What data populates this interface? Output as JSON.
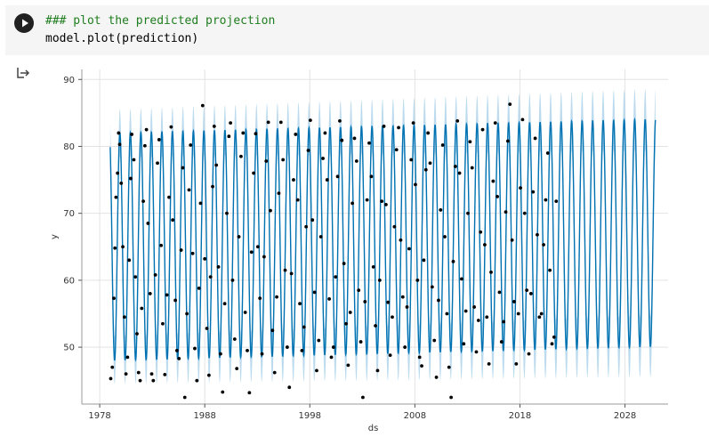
{
  "cell": {
    "code_lines": [
      "### plot the predicted projection",
      "model.plot(prediction)"
    ],
    "run_icon": "play-icon",
    "output_icon": "output-redirect-icon"
  },
  "chart_data": {
    "type": "line",
    "xlabel": "ds",
    "ylabel": "y",
    "xlim": [
      1976.3,
      2032.1
    ],
    "ylim": [
      41.5,
      91.5
    ],
    "x_ticks": [
      1978,
      1988,
      1998,
      2008,
      2018,
      2028
    ],
    "x_tick_labels": [
      "1978",
      "1988",
      "1998",
      "2008",
      "2018",
      "2028"
    ],
    "y_ticks": [
      50,
      60,
      70,
      80,
      90
    ],
    "y_tick_labels": [
      "50",
      "60",
      "70",
      "80",
      "90"
    ],
    "grid": true,
    "forecast": {
      "start": 1979.0,
      "end": 2030.9,
      "period_years": 1.0,
      "trough_approx": 48,
      "peak_approx": 82,
      "uncertainty_band_approx": 3.5,
      "line_color": "#0072b2",
      "band_color": "#a6cfe8"
    },
    "observed": {
      "start": 1979.0,
      "end": 2021.5,
      "marker_color": "#000000",
      "points": [
        [
          1979.05,
          45.3
        ],
        [
          1979.2,
          47.0
        ],
        [
          1979.35,
          57.3
        ],
        [
          1979.45,
          64.8
        ],
        [
          1979.55,
          72.4
        ],
        [
          1979.7,
          76.0
        ],
        [
          1979.8,
          82.0
        ],
        [
          1979.9,
          80.3
        ],
        [
          1980.05,
          74.5
        ],
        [
          1980.2,
          65.0
        ],
        [
          1980.35,
          54.5
        ],
        [
          1980.5,
          46.0
        ],
        [
          1980.65,
          48.5
        ],
        [
          1980.8,
          63.0
        ],
        [
          1980.95,
          75.2
        ],
        [
          1981.05,
          81.8
        ],
        [
          1981.25,
          78.0
        ],
        [
          1981.4,
          60.5
        ],
        [
          1981.55,
          52.0
        ],
        [
          1981.7,
          46.2
        ],
        [
          1981.85,
          45.0
        ],
        [
          1982.0,
          55.8
        ],
        [
          1982.15,
          71.8
        ],
        [
          1982.3,
          80.1
        ],
        [
          1982.45,
          82.5
        ],
        [
          1982.6,
          68.5
        ],
        [
          1982.8,
          58.0
        ],
        [
          1982.95,
          46.0
        ],
        [
          1983.1,
          45.0
        ],
        [
          1983.3,
          60.8
        ],
        [
          1983.5,
          77.5
        ],
        [
          1983.65,
          81.0
        ],
        [
          1983.85,
          65.2
        ],
        [
          1984.0,
          53.5
        ],
        [
          1984.2,
          45.9
        ],
        [
          1984.4,
          57.8
        ],
        [
          1984.6,
          72.4
        ],
        [
          1984.8,
          82.9
        ],
        [
          1984.95,
          69.0
        ],
        [
          1985.2,
          57.0
        ],
        [
          1985.35,
          49.5
        ],
        [
          1985.55,
          48.3
        ],
        [
          1985.75,
          64.5
        ],
        [
          1985.9,
          76.8
        ],
        [
          1986.1,
          42.5
        ],
        [
          1986.3,
          55.0
        ],
        [
          1986.5,
          73.5
        ],
        [
          1986.65,
          80.2
        ],
        [
          1986.85,
          64.0
        ],
        [
          1987.05,
          49.8
        ],
        [
          1987.25,
          45.0
        ],
        [
          1987.45,
          58.8
        ],
        [
          1987.6,
          71.5
        ],
        [
          1987.8,
          86.1
        ],
        [
          1988.0,
          63.2
        ],
        [
          1988.2,
          52.8
        ],
        [
          1988.4,
          45.8
        ],
        [
          1988.55,
          60.5
        ],
        [
          1988.75,
          74.0
        ],
        [
          1988.9,
          83.0
        ],
        [
          1989.1,
          77.2
        ],
        [
          1989.3,
          62.0
        ],
        [
          1989.5,
          49.0
        ],
        [
          1989.7,
          43.3
        ],
        [
          1989.9,
          56.5
        ],
        [
          1990.1,
          70.0
        ],
        [
          1990.3,
          81.5
        ],
        [
          1990.45,
          83.5
        ],
        [
          1990.65,
          60.0
        ],
        [
          1990.85,
          51.2
        ],
        [
          1991.05,
          46.8
        ],
        [
          1991.25,
          66.5
        ],
        [
          1991.45,
          78.5
        ],
        [
          1991.65,
          82.0
        ],
        [
          1991.85,
          55.2
        ],
        [
          1992.05,
          49.5
        ],
        [
          1992.25,
          43.2
        ],
        [
          1992.45,
          64.2
        ],
        [
          1992.65,
          76.0
        ],
        [
          1992.85,
          81.9
        ],
        [
          1993.05,
          65.0
        ],
        [
          1993.25,
          57.3
        ],
        [
          1993.45,
          49.0
        ],
        [
          1993.65,
          63.5
        ],
        [
          1993.85,
          77.8
        ],
        [
          1994.05,
          83.6
        ],
        [
          1994.25,
          70.4
        ],
        [
          1994.45,
          52.5
        ],
        [
          1994.65,
          46.2
        ],
        [
          1994.85,
          57.5
        ],
        [
          1995.05,
          73.0
        ],
        [
          1995.25,
          83.6
        ],
        [
          1995.45,
          78.0
        ],
        [
          1995.65,
          61.5
        ],
        [
          1995.85,
          50.0
        ],
        [
          1996.05,
          44.0
        ],
        [
          1996.25,
          61.0
        ],
        [
          1996.45,
          75.0
        ],
        [
          1996.65,
          81.8
        ],
        [
          1996.85,
          72.0
        ],
        [
          1997.05,
          56.5
        ],
        [
          1997.25,
          49.5
        ],
        [
          1997.45,
          53.0
        ],
        [
          1997.65,
          68.0
        ],
        [
          1997.85,
          79.4
        ],
        [
          1998.05,
          83.9
        ],
        [
          1998.25,
          69.0
        ],
        [
          1998.45,
          58.2
        ],
        [
          1998.65,
          46.5
        ],
        [
          1998.85,
          51.0
        ],
        [
          1999.05,
          66.5
        ],
        [
          1999.25,
          78.2
        ],
        [
          1999.45,
          82.0
        ],
        [
          1999.65,
          75.0
        ],
        [
          1999.85,
          57.2
        ],
        [
          2000.05,
          48.5
        ],
        [
          2000.25,
          50.0
        ],
        [
          2000.45,
          60.5
        ],
        [
          2000.65,
          75.5
        ],
        [
          2000.85,
          83.8
        ],
        [
          2001.05,
          80.9
        ],
        [
          2001.25,
          62.5
        ],
        [
          2001.45,
          53.5
        ],
        [
          2001.65,
          47.3
        ],
        [
          2001.85,
          55.2
        ],
        [
          2002.05,
          71.5
        ],
        [
          2002.25,
          81.2
        ],
        [
          2002.45,
          77.8
        ],
        [
          2002.65,
          58.5
        ],
        [
          2002.85,
          50.8
        ],
        [
          2003.05,
          42.5
        ],
        [
          2003.25,
          56.8
        ],
        [
          2003.45,
          72.0
        ],
        [
          2003.65,
          80.5
        ],
        [
          2003.85,
          75.5
        ],
        [
          2004.05,
          62.0
        ],
        [
          2004.25,
          53.2
        ],
        [
          2004.45,
          46.5
        ],
        [
          2004.65,
          60.0
        ],
        [
          2004.85,
          71.8
        ],
        [
          2005.05,
          83.0
        ],
        [
          2005.25,
          71.3
        ],
        [
          2005.45,
          56.7
        ],
        [
          2005.65,
          48.8
        ],
        [
          2005.85,
          54.5
        ],
        [
          2006.05,
          68.0
        ],
        [
          2006.25,
          79.5
        ],
        [
          2006.45,
          82.8
        ],
        [
          2006.65,
          66.0
        ],
        [
          2006.85,
          57.5
        ],
        [
          2007.05,
          50.0
        ],
        [
          2007.25,
          56.0
        ],
        [
          2007.45,
          64.7
        ],
        [
          2007.65,
          78.0
        ],
        [
          2007.85,
          83.5
        ],
        [
          2008.05,
          74.3
        ],
        [
          2008.25,
          60.0
        ],
        [
          2008.45,
          48.5
        ],
        [
          2008.65,
          47.2
        ],
        [
          2008.85,
          63.0
        ],
        [
          2009.05,
          76.5
        ],
        [
          2009.25,
          82.0
        ],
        [
          2009.45,
          77.5
        ],
        [
          2009.65,
          59.0
        ],
        [
          2009.85,
          51.0
        ],
        [
          2010.05,
          45.5
        ],
        [
          2010.25,
          57.0
        ],
        [
          2010.45,
          70.5
        ],
        [
          2010.65,
          80.2
        ],
        [
          2010.85,
          66.5
        ],
        [
          2011.05,
          55.0
        ],
        [
          2011.25,
          47.0
        ],
        [
          2011.45,
          42.5
        ],
        [
          2011.65,
          62.8
        ],
        [
          2011.85,
          77.0
        ],
        [
          2012.05,
          83.8
        ],
        [
          2012.25,
          76.0
        ],
        [
          2012.45,
          60.2
        ],
        [
          2012.65,
          50.5
        ],
        [
          2012.85,
          55.4
        ],
        [
          2013.05,
          70.0
        ],
        [
          2013.25,
          80.7
        ],
        [
          2013.45,
          76.8
        ],
        [
          2013.65,
          56.0
        ],
        [
          2013.85,
          49.3
        ],
        [
          2014.05,
          54.0
        ],
        [
          2014.25,
          67.2
        ],
        [
          2014.45,
          82.5
        ],
        [
          2014.65,
          65.3
        ],
        [
          2014.85,
          54.5
        ],
        [
          2015.05,
          47.5
        ],
        [
          2015.25,
          61.2
        ],
        [
          2015.45,
          74.8
        ],
        [
          2015.65,
          83.5
        ],
        [
          2015.85,
          72.5
        ],
        [
          2016.05,
          58.2
        ],
        [
          2016.25,
          50.8
        ],
        [
          2016.45,
          53.8
        ],
        [
          2016.65,
          70.2
        ],
        [
          2016.85,
          80.8
        ],
        [
          2017.05,
          86.3
        ],
        [
          2017.25,
          66.0
        ],
        [
          2017.45,
          56.8
        ],
        [
          2017.65,
          47.5
        ],
        [
          2017.85,
          55.0
        ],
        [
          2018.05,
          73.8
        ],
        [
          2018.25,
          84.0
        ],
        [
          2018.45,
          70.0
        ],
        [
          2018.65,
          58.5
        ],
        [
          2018.85,
          49.0
        ],
        [
          2019.05,
          58.0
        ],
        [
          2019.25,
          73.2
        ],
        [
          2019.45,
          81.2
        ],
        [
          2019.65,
          66.8
        ],
        [
          2019.85,
          54.5
        ],
        [
          2020.05,
          55.0
        ],
        [
          2020.25,
          65.3
        ],
        [
          2020.45,
          72.0
        ],
        [
          2020.65,
          79.0
        ],
        [
          2020.85,
          61.5
        ],
        [
          2021.05,
          50.5
        ],
        [
          2021.25,
          51.5
        ],
        [
          2021.45,
          71.8
        ]
      ]
    }
  }
}
